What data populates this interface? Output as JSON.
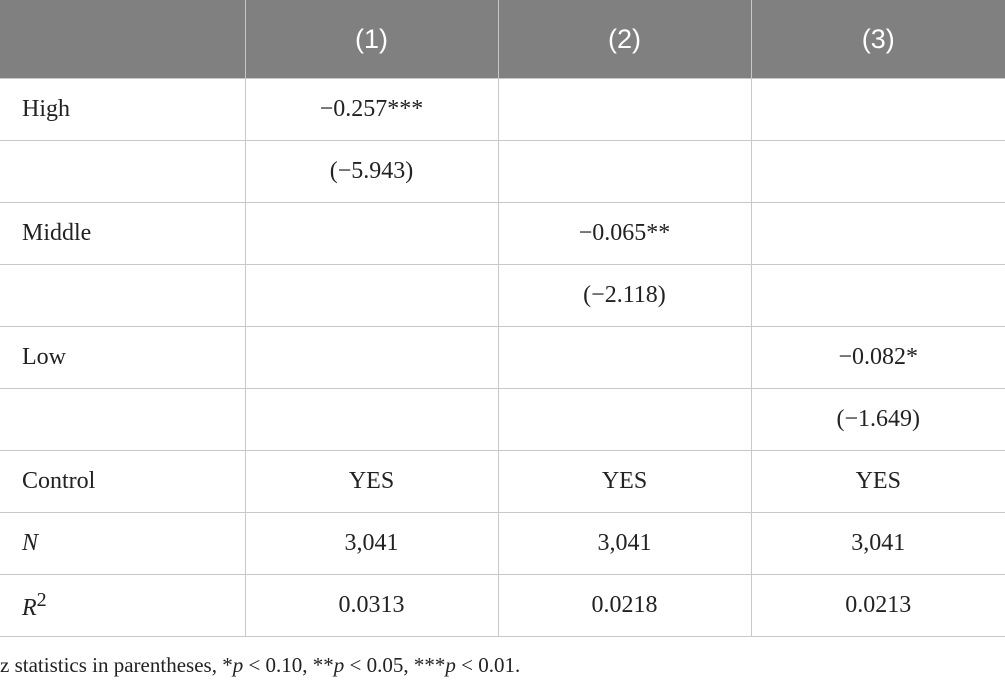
{
  "table": {
    "header": [
      "(1)",
      "(2)",
      "(3)"
    ],
    "rows": [
      {
        "label": "High",
        "values": [
          "−0.257***",
          null,
          null
        ]
      },
      {
        "label": null,
        "values": [
          "(−5.943)",
          null,
          null
        ]
      },
      {
        "label": "Middle",
        "values": [
          null,
          "−0.065**",
          null
        ]
      },
      {
        "label": null,
        "values": [
          null,
          "(−2.118)",
          null
        ]
      },
      {
        "label": "Low",
        "values": [
          null,
          null,
          "−0.082*"
        ]
      },
      {
        "label": null,
        "values": [
          null,
          null,
          "(−1.649)"
        ]
      },
      {
        "label": "Control",
        "values": [
          "YES",
          "YES",
          "YES"
        ]
      },
      {
        "label": "N",
        "italic": true,
        "values": [
          "3,041",
          "3,041",
          "3,041"
        ]
      },
      {
        "label": "R",
        "italic": true,
        "label_sup": "2",
        "values": [
          "0.0313",
          "0.0218",
          "0.0213"
        ]
      }
    ]
  },
  "footnote": [
    "z statistics in parentheses, *",
    "p",
    " < 0.10, **",
    "p",
    " < 0.05, ***",
    "p",
    " < 0.01."
  ]
}
